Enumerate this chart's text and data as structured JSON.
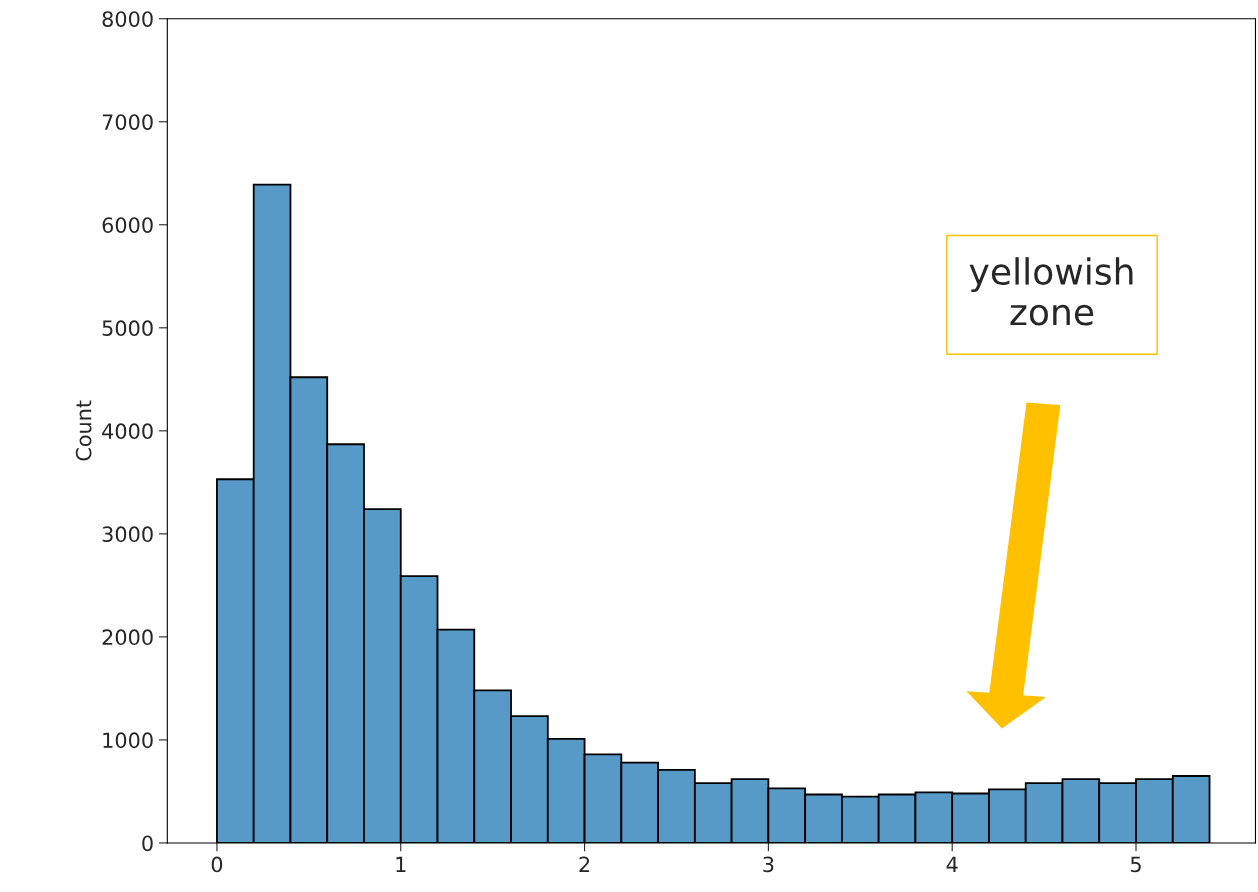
{
  "chart_data": {
    "type": "histogram",
    "ylabel": "Count",
    "bins": [
      0,
      0.2,
      0.4,
      0.6,
      0.8,
      1.0,
      1.2,
      1.4,
      1.6,
      1.8,
      2.0,
      2.2,
      2.4,
      2.6,
      2.8,
      3.0,
      3.2,
      3.4,
      3.6,
      3.8,
      4.0,
      4.2,
      4.4,
      4.6,
      4.8,
      5.0,
      5.2,
      5.4
    ],
    "values": [
      3530,
      6390,
      4520,
      3870,
      3240,
      2590,
      2070,
      1480,
      1230,
      1010,
      860,
      780,
      710,
      580,
      620,
      530,
      470,
      450,
      470,
      490,
      480,
      520,
      580,
      620,
      580,
      620,
      650
    ],
    "color": "#5799c7",
    "xlim": [
      -0.27,
      5.65
    ],
    "ylim": [
      0,
      8000
    ],
    "xticks": [
      0,
      1,
      2,
      3,
      4,
      5
    ],
    "yticks": [
      0,
      1000,
      2000,
      3000,
      4000,
      5000,
      6000,
      7000,
      8000
    ],
    "grid": false,
    "annotations": [
      "yellowish\nzone"
    ]
  }
}
